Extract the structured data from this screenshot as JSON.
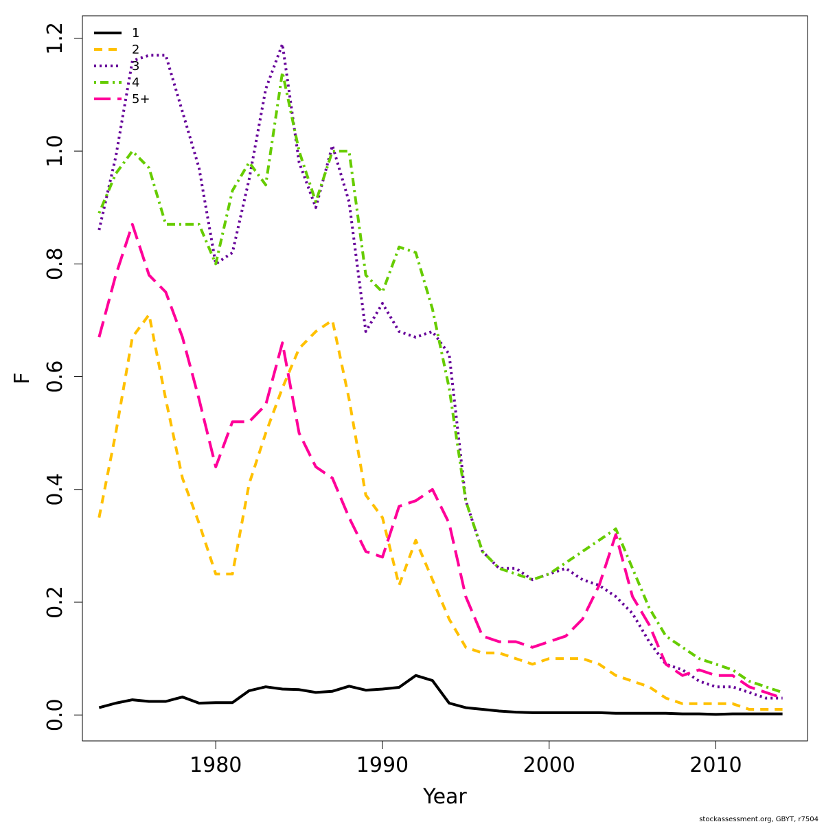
{
  "chart_data": {
    "type": "line",
    "xlabel": "Year",
    "ylabel": "F",
    "xlim": [
      1972,
      2015.5
    ],
    "ylim": [
      -0.046,
      1.24
    ],
    "xticks": [
      1980,
      1990,
      2000,
      2010
    ],
    "yticks": [
      0.0,
      0.2,
      0.4,
      0.6,
      0.8,
      1.0,
      1.2
    ],
    "ytick_labels": [
      "0.0",
      "0.2",
      "0.4",
      "0.6",
      "0.8",
      "1.0",
      "1.2"
    ],
    "legend_position": "top-left",
    "grid": false,
    "x": [
      1973,
      1974,
      1975,
      1976,
      1977,
      1978,
      1979,
      1980,
      1981,
      1982,
      1983,
      1984,
      1985,
      1986,
      1987,
      1988,
      1989,
      1990,
      1991,
      1992,
      1993,
      1994,
      1995,
      1996,
      1997,
      1998,
      1999,
      2000,
      2001,
      2002,
      2003,
      2004,
      2005,
      2006,
      2007,
      2008,
      2009,
      2010,
      2011,
      2012,
      2013,
      2014
    ],
    "series": [
      {
        "name": "1",
        "color": "#000000",
        "dash": "solid",
        "values": [
          0.013,
          0.021,
          0.027,
          0.024,
          0.024,
          0.032,
          0.021,
          0.022,
          0.022,
          0.043,
          0.05,
          0.046,
          0.045,
          0.04,
          0.042,
          0.051,
          0.044,
          0.046,
          0.049,
          0.07,
          0.061,
          0.021,
          0.013,
          0.01,
          0.007,
          0.005,
          0.004,
          0.004,
          0.004,
          0.004,
          0.004,
          0.003,
          0.003,
          0.003,
          0.003,
          0.002,
          0.002,
          0.001,
          0.002,
          0.002,
          0.002,
          0.002
        ]
      },
      {
        "name": "2",
        "color": "#FFC000",
        "dash": "dashed",
        "values": [
          0.35,
          0.5,
          0.67,
          0.71,
          0.56,
          0.42,
          0.34,
          0.25,
          0.25,
          0.41,
          0.5,
          0.58,
          0.65,
          0.68,
          0.7,
          0.56,
          0.39,
          0.35,
          0.23,
          0.31,
          0.24,
          0.17,
          0.12,
          0.11,
          0.11,
          0.1,
          0.09,
          0.1,
          0.1,
          0.1,
          0.09,
          0.07,
          0.06,
          0.05,
          0.03,
          0.02,
          0.02,
          0.02,
          0.02,
          0.01,
          0.01,
          0.01
        ]
      },
      {
        "name": "3",
        "color": "#660099",
        "dash": "dotted",
        "values": [
          0.86,
          0.99,
          1.16,
          1.17,
          1.17,
          1.07,
          0.97,
          0.8,
          0.82,
          0.95,
          1.11,
          1.19,
          0.98,
          0.9,
          1.01,
          0.91,
          0.68,
          0.73,
          0.68,
          0.67,
          0.68,
          0.64,
          0.38,
          0.29,
          0.26,
          0.26,
          0.24,
          0.25,
          0.26,
          0.24,
          0.23,
          0.21,
          0.18,
          0.13,
          0.09,
          0.08,
          0.06,
          0.05,
          0.05,
          0.04,
          0.03,
          0.03
        ]
      },
      {
        "name": "4",
        "color": "#66CC00",
        "dash": "dotdash",
        "values": [
          0.89,
          0.96,
          1.0,
          0.97,
          0.87,
          0.87,
          0.87,
          0.8,
          0.93,
          0.98,
          0.94,
          1.14,
          1.0,
          0.91,
          1.0,
          1.0,
          0.78,
          0.75,
          0.83,
          0.82,
          0.72,
          0.58,
          0.38,
          0.29,
          0.26,
          0.25,
          0.24,
          0.25,
          0.27,
          0.29,
          0.31,
          0.33,
          0.26,
          0.19,
          0.14,
          0.12,
          0.1,
          0.09,
          0.08,
          0.06,
          0.05,
          0.04
        ]
      },
      {
        "name": "5+",
        "color": "#FF0099",
        "dash": "longdash",
        "values": [
          0.67,
          0.78,
          0.87,
          0.78,
          0.75,
          0.67,
          0.56,
          0.44,
          0.52,
          0.52,
          0.55,
          0.66,
          0.5,
          0.44,
          0.42,
          0.35,
          0.29,
          0.28,
          0.37,
          0.38,
          0.4,
          0.34,
          0.21,
          0.14,
          0.13,
          0.13,
          0.12,
          0.13,
          0.14,
          0.17,
          0.23,
          0.32,
          0.21,
          0.16,
          0.09,
          0.07,
          0.08,
          0.07,
          0.07,
          0.05,
          0.04,
          0.03
        ]
      }
    ]
  },
  "footer": {
    "note": "stockassessment.org, GBYT, r7504"
  }
}
